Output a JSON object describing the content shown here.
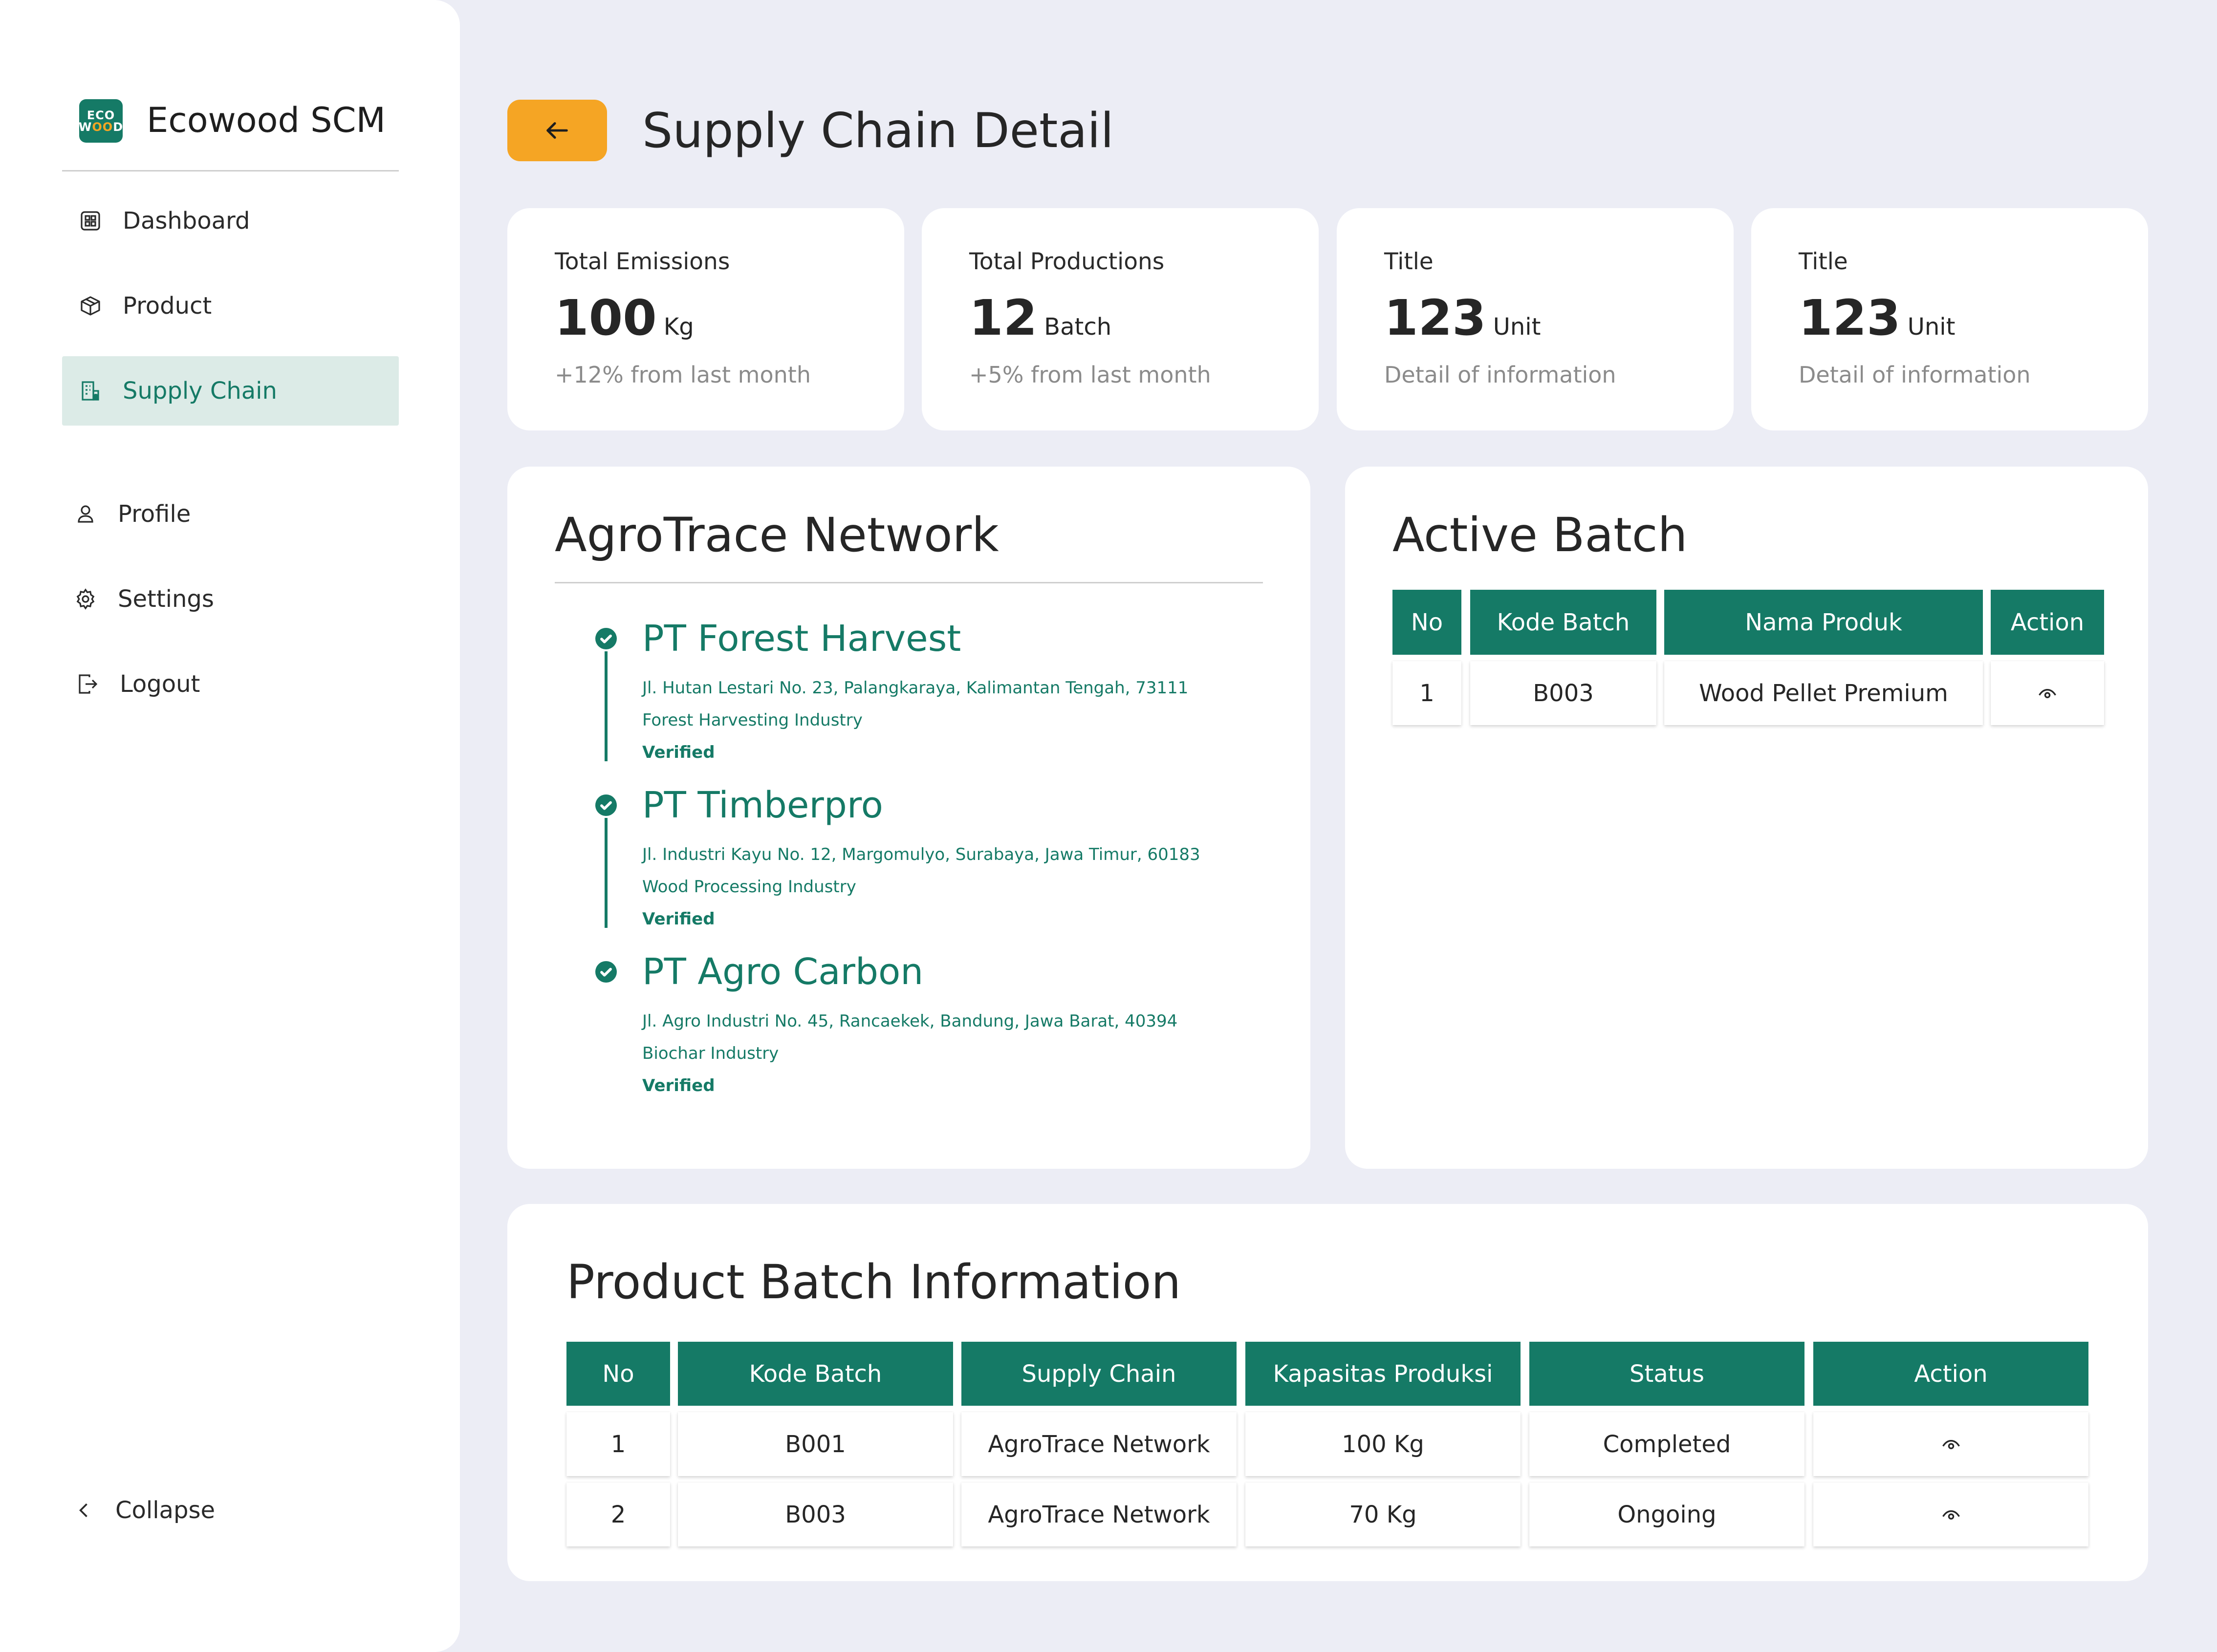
{
  "app": {
    "brand": "Ecowood SCM",
    "logo_top": "ECO",
    "logo_bottom_a": "W",
    "logo_bottom_b": "OO",
    "logo_bottom_c": "D"
  },
  "sidebar": {
    "items": [
      {
        "label": "Dashboard",
        "icon": "grid-icon"
      },
      {
        "label": "Product",
        "icon": "box-icon"
      },
      {
        "label": "Supply Chain",
        "icon": "building-icon",
        "active": true
      },
      {
        "label": "Profile",
        "icon": "user-icon"
      },
      {
        "label": "Settings",
        "icon": "gear-icon"
      },
      {
        "label": "Logout",
        "icon": "logout-icon"
      }
    ],
    "collapse_label": "Collapse"
  },
  "header": {
    "title": "Supply Chain Detail"
  },
  "stats": [
    {
      "label": "Total Emissions",
      "value": "100",
      "unit": "Kg",
      "sub": "+12% from last month"
    },
    {
      "label": "Total Productions",
      "value": "12",
      "unit": "Batch",
      "sub": "+5% from last month"
    },
    {
      "label": "Title",
      "value": "123",
      "unit": "Unit",
      "sub": "Detail of information"
    },
    {
      "label": "Title",
      "value": "123",
      "unit": "Unit",
      "sub": "Detail of information"
    }
  ],
  "network": {
    "title": "AgroTrace Network",
    "nodes": [
      {
        "name": "PT Forest Harvest",
        "address": "Jl. Hutan Lestari No. 23, Palangkaraya, Kalimantan Tengah, 73111",
        "type": "Forest Harvesting Industry",
        "status": "Verified"
      },
      {
        "name": "PT Timberpro",
        "address": "Jl. Industri Kayu No. 12, Margomulyo, Surabaya, Jawa Timur, 60183",
        "type": "Wood Processing Industry",
        "status": "Verified"
      },
      {
        "name": "PT Agro Carbon",
        "address": "Jl. Agro Industri No. 45, Rancaekek, Bandung, Jawa Barat, 40394",
        "type": "Biochar Industry",
        "status": "Verified"
      }
    ]
  },
  "active_batch": {
    "title": "Active Batch",
    "headers": [
      "No",
      "Kode Batch",
      "Nama Produk",
      "Action"
    ],
    "rows": [
      {
        "no": "1",
        "kode": "B003",
        "produk": "Wood Pellet Premium",
        "action_icon": "eye-icon"
      }
    ]
  },
  "product_batch": {
    "title": "Product Batch Information",
    "headers": [
      "No",
      "Kode Batch",
      "Supply Chain",
      "Kapasitas Produksi",
      "Status",
      "Action"
    ],
    "rows": [
      {
        "no": "1",
        "kode": "B001",
        "chain": "AgroTrace Network",
        "kapasitas": "100 Kg",
        "status": "Completed",
        "action_icon": "eye-icon"
      },
      {
        "no": "2",
        "kode": "B003",
        "chain": "AgroTrace Network",
        "kapasitas": "70 Kg",
        "status": "Ongoing",
        "action_icon": "eye-icon"
      }
    ]
  },
  "colors": {
    "primary": "#157A66",
    "accent": "#F5A524",
    "background": "#ECEDF5",
    "active_nav_bg": "#DCEBE7"
  }
}
